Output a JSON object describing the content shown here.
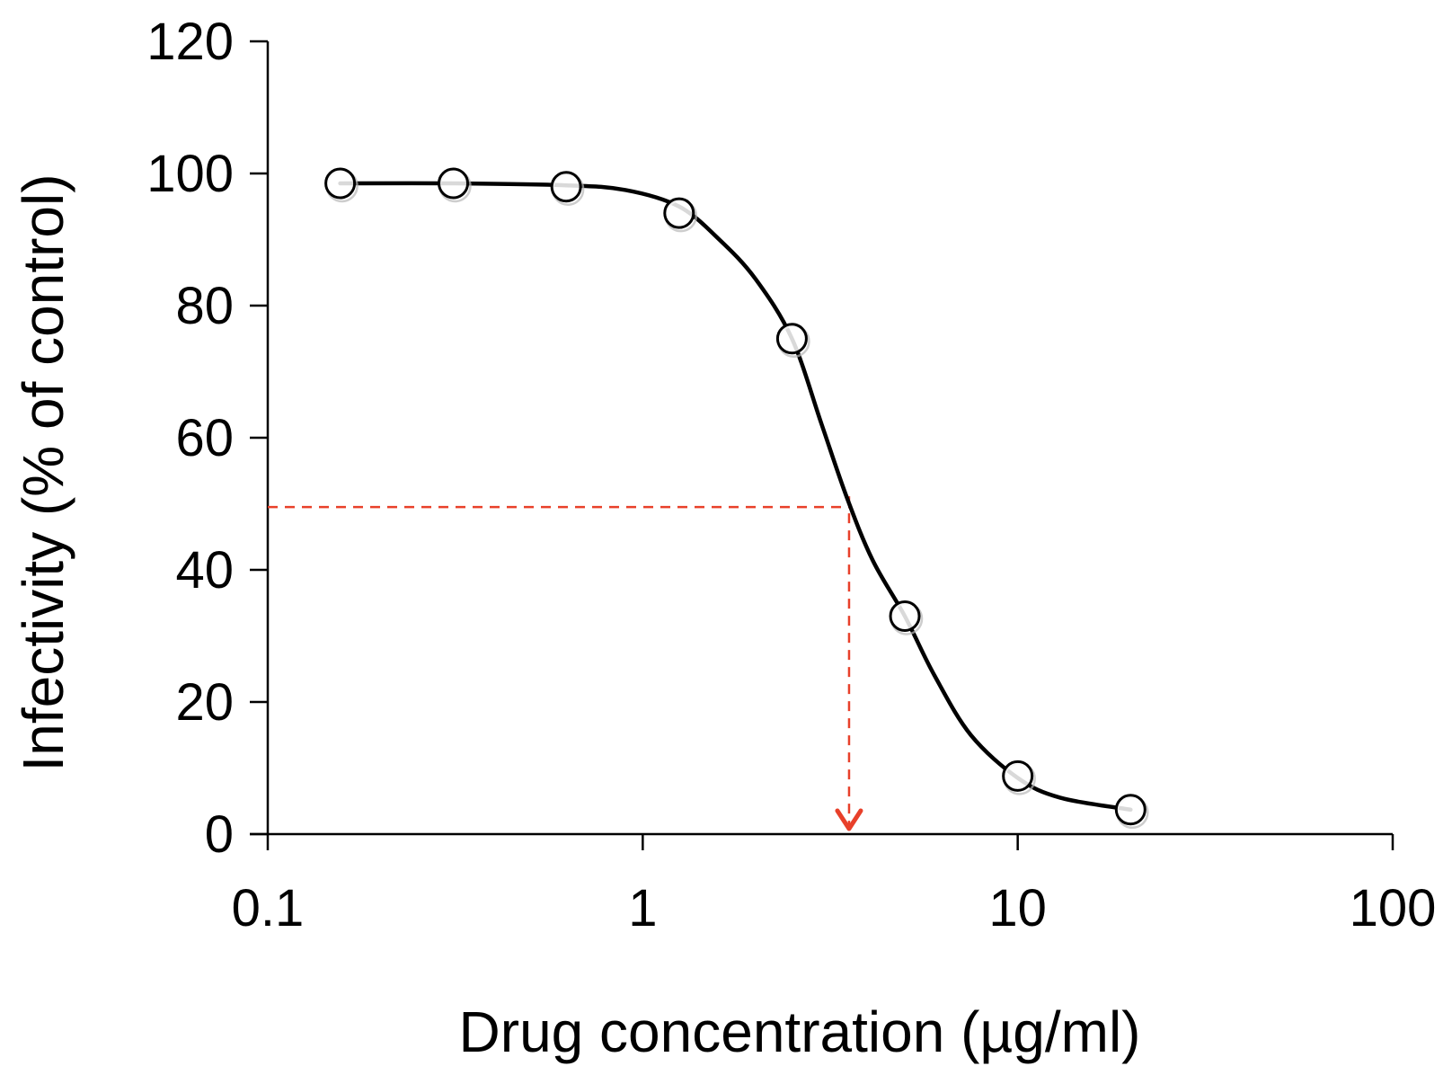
{
  "chart_data": {
    "type": "scatter",
    "title": "",
    "xlabel": "Drug concentration (µg/ml)",
    "ylabel": "Infectivity (% of control)",
    "xscale": "log",
    "xlim": [
      0.1,
      100
    ],
    "ylim": [
      0,
      120
    ],
    "x_ticks": [
      0.1,
      1,
      10,
      100
    ],
    "x_tick_labels": [
      "0.1",
      "1",
      "10",
      "100"
    ],
    "y_ticks": [
      0,
      20,
      40,
      60,
      80,
      100,
      120
    ],
    "y_tick_labels": [
      "0",
      "20",
      "40",
      "60",
      "80",
      "100",
      "120"
    ],
    "grid": false,
    "legend": "none",
    "series": [
      {
        "points": [
          {
            "x": 0.156,
            "y": 98.5
          },
          {
            "x": 0.3125,
            "y": 98.5
          },
          {
            "x": 0.625,
            "y": 98.0
          },
          {
            "x": 1.25,
            "y": 94.0
          },
          {
            "x": 2.5,
            "y": 75.0
          },
          {
            "x": 5.0,
            "y": 33.0
          },
          {
            "x": 10.0,
            "y": 8.8
          },
          {
            "x": 20.0,
            "y": 3.7
          }
        ],
        "marker": "open-circle",
        "color": "#000000"
      }
    ],
    "fit_curve": {
      "type": "sigmoid-line",
      "color": "#000000",
      "points": [
        {
          "x": 0.156,
          "y": 98.5
        },
        {
          "x": 0.3125,
          "y": 98.5
        },
        {
          "x": 0.625,
          "y": 98.2
        },
        {
          "x": 0.9,
          "y": 97.5
        },
        {
          "x": 1.25,
          "y": 95.0
        },
        {
          "x": 1.6,
          "y": 90.0
        },
        {
          "x": 2.0,
          "y": 84.0
        },
        {
          "x": 2.5,
          "y": 75.0
        },
        {
          "x": 3.0,
          "y": 62.0
        },
        {
          "x": 3.5,
          "y": 51.0
        },
        {
          "x": 4.1,
          "y": 41.5
        },
        {
          "x": 5.0,
          "y": 33.0
        },
        {
          "x": 6.0,
          "y": 24.0
        },
        {
          "x": 7.5,
          "y": 15.0
        },
        {
          "x": 10.0,
          "y": 8.5
        },
        {
          "x": 13.0,
          "y": 5.5
        },
        {
          "x": 20.0,
          "y": 3.7
        }
      ]
    },
    "reference_lines": {
      "color": "#e8402a",
      "style": "dashed",
      "y_value": 49.5,
      "x_value": 3.55,
      "arrow": "down"
    }
  }
}
